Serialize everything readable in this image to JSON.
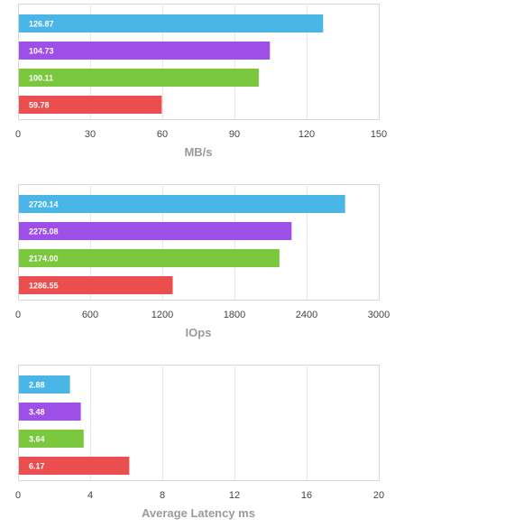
{
  "chart_data": [
    {
      "type": "bar",
      "orientation": "horizontal",
      "xlabel": "MB/s",
      "xlim": [
        0,
        150
      ],
      "ticks": [
        0,
        30,
        60,
        90,
        120,
        150
      ],
      "grid": true,
      "values": [
        126.87,
        104.73,
        100.11,
        59.78
      ],
      "value_labels": [
        "126.87",
        "104.73",
        "100.11",
        "59.78"
      ],
      "colors": [
        "#4ab6e8",
        "#9d4fe8",
        "#7bc83e",
        "#ea4e4e"
      ]
    },
    {
      "type": "bar",
      "orientation": "horizontal",
      "xlabel": "IOps",
      "xlim": [
        0,
        3000
      ],
      "ticks": [
        0,
        600,
        1200,
        1800,
        2400,
        3000
      ],
      "grid": true,
      "values": [
        2720.14,
        2275.08,
        2174.0,
        1286.55
      ],
      "value_labels": [
        "2720.14",
        "2275.08",
        "2174.00",
        "1286.55"
      ],
      "colors": [
        "#4ab6e8",
        "#9d4fe8",
        "#7bc83e",
        "#ea4e4e"
      ]
    },
    {
      "type": "bar",
      "orientation": "horizontal",
      "xlabel": "Average Latency ms",
      "xlim": [
        0,
        20
      ],
      "ticks": [
        0,
        4,
        8,
        12,
        16,
        20
      ],
      "grid": true,
      "values": [
        2.88,
        3.48,
        3.64,
        6.17
      ],
      "value_labels": [
        "2.88",
        "3.48",
        "3.64",
        "6.17"
      ],
      "colors": [
        "#4ab6e8",
        "#9d4fe8",
        "#7bc83e",
        "#ea4e4e"
      ]
    }
  ]
}
